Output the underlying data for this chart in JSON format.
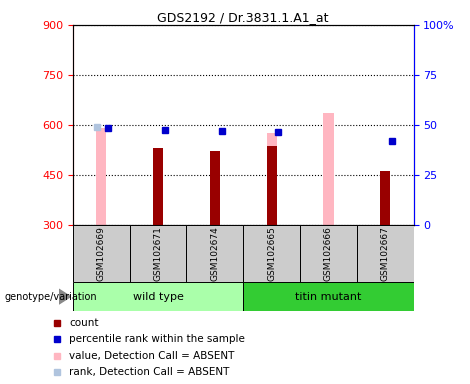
{
  "title": "GDS2192 / Dr.3831.1.A1_at",
  "samples": [
    "GSM102669",
    "GSM102671",
    "GSM102674",
    "GSM102665",
    "GSM102666",
    "GSM102667"
  ],
  "count_values": [
    null,
    530,
    520,
    535,
    null,
    460
  ],
  "percentile_values": [
    590,
    585,
    582,
    578,
    null,
    550
  ],
  "absent_value_values": [
    590,
    null,
    null,
    575,
    635,
    null
  ],
  "absent_rank_values": [
    592,
    null,
    null,
    null,
    null,
    null
  ],
  "ylim_left": [
    300,
    900
  ],
  "ylim_right": [
    0,
    100
  ],
  "left_ticks": [
    300,
    450,
    600,
    750,
    900
  ],
  "right_ticks": [
    0,
    25,
    50,
    75,
    100
  ],
  "right_tick_labels": [
    "0",
    "25",
    "50",
    "75",
    "100%"
  ],
  "dark_red": "#990000",
  "blue_sq": "#0000CC",
  "pink": "#FFB6C1",
  "light_blue": "#B0C4DE",
  "wt_color": "#AAFFAA",
  "tm_color": "#33CC33",
  "legend_items": [
    {
      "label": "count",
      "color": "#990000"
    },
    {
      "label": "percentile rank within the sample",
      "color": "#0000CC"
    },
    {
      "label": "value, Detection Call = ABSENT",
      "color": "#FFB6C1"
    },
    {
      "label": "rank, Detection Call = ABSENT",
      "color": "#B0C4DE"
    }
  ]
}
